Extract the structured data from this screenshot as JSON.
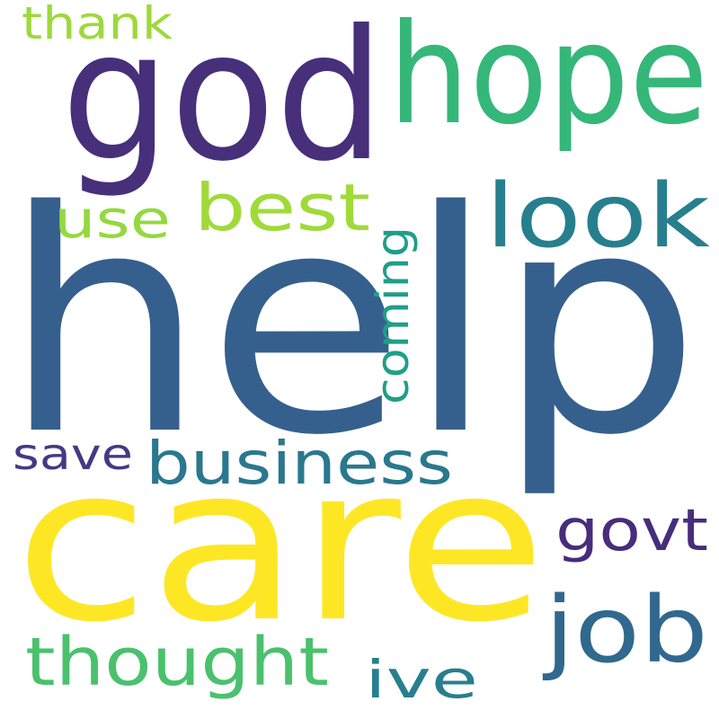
{
  "words": [
    {
      "text": "help",
      "color": "#35608d"
    },
    {
      "text": "care",
      "color": "#fde725"
    },
    {
      "text": "god",
      "color": "#482f7a"
    },
    {
      "text": "hope",
      "color": "#35b779"
    },
    {
      "text": "look",
      "color": "#277f8e"
    },
    {
      "text": "best",
      "color": "#a0da39"
    },
    {
      "text": "use",
      "color": "#95d840"
    },
    {
      "text": "thank",
      "color": "#9dd93b"
    },
    {
      "text": "coming",
      "color": "#1f9e89"
    },
    {
      "text": "business",
      "color": "#2a788e"
    },
    {
      "text": "save",
      "color": "#443a83"
    },
    {
      "text": "govt",
      "color": "#472d7b"
    },
    {
      "text": "job",
      "color": "#31688e"
    },
    {
      "text": "thought",
      "color": "#4ac16d"
    },
    {
      "text": "ive",
      "color": "#277f8e"
    }
  ]
}
